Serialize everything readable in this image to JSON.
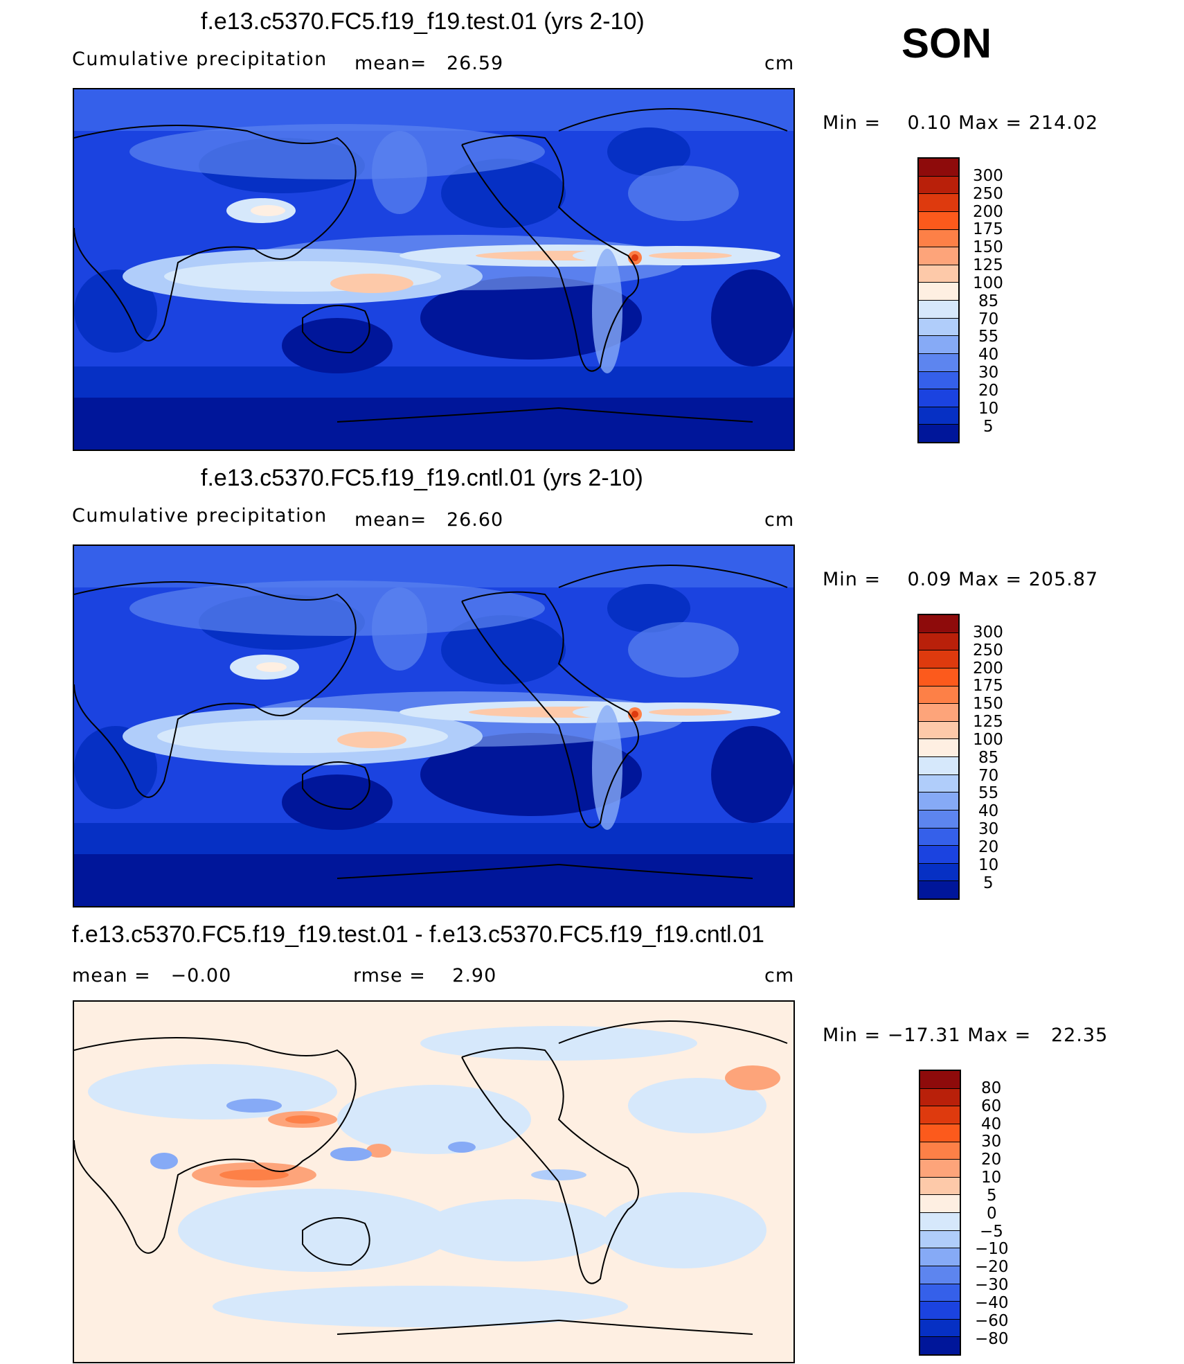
{
  "season": "SON",
  "panels": [
    {
      "title": "f.e13.c5370.FC5.f19_f19.test.01 (yrs 2-10)",
      "left_label": "Cumulative precipitation",
      "center_label": "mean=   26.59",
      "units": "cm",
      "minmax": "Min =    0.10 Max = 214.02"
    },
    {
      "title": "f.e13.c5370.FC5.f19_f19.cntl.01 (yrs 2-10)",
      "left_label": "Cumulative precipitation",
      "center_label": "mean=   26.60",
      "units": "cm",
      "minmax": "Min =    0.09 Max = 205.87"
    },
    {
      "title": "f.e13.c5370.FC5.f19_f19.test.01 - f.e13.c5370.FC5.f19_f19.cntl.01",
      "left_label": "mean =   −0.00",
      "center_label": "rmse =    2.90",
      "units": "cm",
      "minmax": "Min = −17.31 Max =   22.35"
    }
  ],
  "chart_data": [
    {
      "type": "heatmap",
      "title": "f.e13.c5370.FC5.f19_f19.test.01 (yrs 2-10)",
      "field": "Cumulative precipitation",
      "units": "cm",
      "mean": 26.59,
      "min": 0.1,
      "max": 214.02,
      "colorbar_levels": [
        "300",
        "250",
        "200",
        "175",
        "150",
        "125",
        "100",
        "85",
        "70",
        "55",
        "40",
        "30",
        "20",
        "10",
        "5"
      ],
      "colorbar_colors": [
        "#8e0b0b",
        "#b9200a",
        "#de3a0e",
        "#fc5a1c",
        "#fd8047",
        "#fda47a",
        "#fdc9a9",
        "#feefe2",
        "#d6e8fb",
        "#b0cdfa",
        "#86aaf6",
        "#5d85ef",
        "#3560ea",
        "#1b43e0",
        "#0630c4",
        "#00169a"
      ],
      "grid": false,
      "legend_position": "right"
    },
    {
      "type": "heatmap",
      "title": "f.e13.c5370.FC5.f19_f19.cntl.01 (yrs 2-10)",
      "field": "Cumulative precipitation",
      "units": "cm",
      "mean": 26.6,
      "min": 0.09,
      "max": 205.87,
      "colorbar_levels": [
        "300",
        "250",
        "200",
        "175",
        "150",
        "125",
        "100",
        "85",
        "70",
        "55",
        "40",
        "30",
        "20",
        "10",
        "5"
      ],
      "colorbar_colors": [
        "#8e0b0b",
        "#b9200a",
        "#de3a0e",
        "#fc5a1c",
        "#fd8047",
        "#fda47a",
        "#fdc9a9",
        "#feefe2",
        "#d6e8fb",
        "#b0cdfa",
        "#86aaf6",
        "#5d85ef",
        "#3560ea",
        "#1b43e0",
        "#0630c4",
        "#00169a"
      ],
      "grid": false,
      "legend_position": "right"
    },
    {
      "type": "heatmap",
      "title": "f.e13.c5370.FC5.f19_f19.test.01 - f.e13.c5370.FC5.f19_f19.cntl.01",
      "units": "cm",
      "mean": -0.0,
      "rmse": 2.9,
      "min": -17.31,
      "max": 22.35,
      "colorbar_levels": [
        "80",
        "60",
        "40",
        "30",
        "20",
        "10",
        "5",
        "0",
        "−5",
        "−10",
        "−20",
        "−30",
        "−40",
        "−60",
        "−80"
      ],
      "colorbar_colors": [
        "#8e0b0b",
        "#b9200a",
        "#de3a0e",
        "#fc5a1c",
        "#fd8047",
        "#fda47a",
        "#fdc9a9",
        "#feefe2",
        "#d6e8fb",
        "#b0cdfa",
        "#86aaf6",
        "#5d85ef",
        "#3560ea",
        "#1b43e0",
        "#0630c4",
        "#00169a"
      ],
      "grid": false,
      "legend_position": "right"
    }
  ]
}
